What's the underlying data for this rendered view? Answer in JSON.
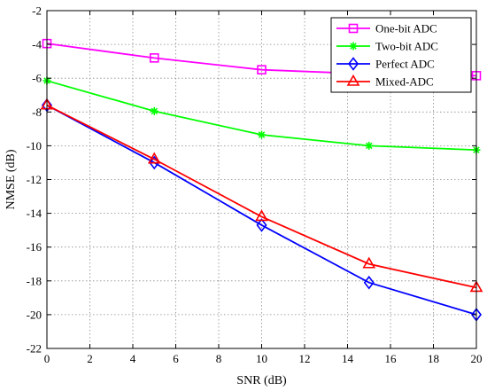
{
  "chart_data": {
    "type": "line",
    "title": "",
    "xlabel": "SNR (dB)",
    "ylabel": "NMSE (dB)",
    "xlim": [
      0,
      20
    ],
    "ylim": [
      -22,
      -2
    ],
    "xticks": [
      0,
      2,
      4,
      6,
      8,
      10,
      12,
      14,
      16,
      18,
      20
    ],
    "yticks": [
      -22,
      -20,
      -18,
      -16,
      -14,
      -12,
      -10,
      -8,
      -6,
      -4,
      -2
    ],
    "grid": true,
    "legend_position": "top-right",
    "x": [
      0,
      5,
      10,
      15,
      20
    ],
    "series": [
      {
        "name": "One-bit ADC",
        "color": "#ff00ff",
        "marker": "square",
        "values": [
          -3.95,
          -4.8,
          -5.5,
          -5.75,
          -5.85
        ]
      },
      {
        "name": "Two-bit ADC",
        "color": "#00ff00",
        "marker": "star",
        "values": [
          -6.15,
          -7.95,
          -9.35,
          -10.0,
          -10.25
        ]
      },
      {
        "name": "Perfect ADC",
        "color": "#0000ff",
        "marker": "diamond",
        "values": [
          -7.6,
          -11.0,
          -14.7,
          -18.1,
          -20.0
        ]
      },
      {
        "name": "Mixed-ADC",
        "color": "#ff0000",
        "marker": "triangle",
        "values": [
          -7.6,
          -10.8,
          -14.2,
          -17.0,
          -18.4
        ]
      }
    ]
  }
}
